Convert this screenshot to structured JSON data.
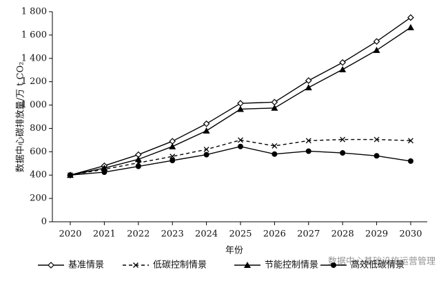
{
  "chart_data": {
    "type": "line",
    "xlabel": "年份",
    "ylabel": "数据中心碳排放量/万 t CO₂",
    "categories": [
      "2020",
      "2021",
      "2022",
      "2023",
      "2024",
      "2025",
      "2026",
      "2027",
      "2028",
      "2029",
      "2030"
    ],
    "series": [
      {
        "name": "基准情景",
        "color": "#000000",
        "dash": false,
        "marker": "diamond",
        "values": [
          400,
          480,
          575,
          690,
          840,
          1015,
          1025,
          1210,
          1365,
          1545,
          1750
        ]
      },
      {
        "name": "低碳控制情景",
        "color": "#000000",
        "dash": true,
        "marker": "cross",
        "values": [
          400,
          450,
          505,
          560,
          620,
          700,
          650,
          695,
          705,
          705,
          695
        ]
      },
      {
        "name": "节能控制情景",
        "color": "#000000",
        "dash": false,
        "marker": "triangle",
        "values": [
          400,
          460,
          535,
          645,
          780,
          965,
          975,
          1150,
          1305,
          1470,
          1665
        ]
      },
      {
        "name": "高效低碳情景",
        "color": "#000000",
        "dash": false,
        "marker": "circle",
        "values": [
          400,
          425,
          475,
          525,
          575,
          645,
          580,
          605,
          590,
          565,
          520
        ]
      }
    ],
    "ylim": [
      0,
      1800
    ],
    "yticks": [
      0,
      200,
      400,
      600,
      800,
      {
        "value": 1000,
        "label": "1 000"
      },
      {
        "value": 1200,
        "label": "1 200"
      },
      {
        "value": 1400,
        "label": "1 400"
      },
      {
        "value": 1600,
        "label": "1 600"
      },
      {
        "value": 1800,
        "label": "1 800"
      }
    ],
    "grid": false,
    "legend": "bottom",
    "annotations": [
      "数据中心基础设施运营管理"
    ]
  }
}
